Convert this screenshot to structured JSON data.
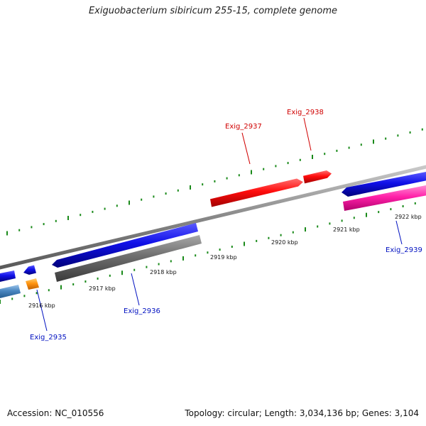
{
  "title": "Exiguobacterium sibiricum 255-15, complete genome",
  "accession": "Accession: NC_010556",
  "topology": "Topology: circular; Length: 3,034,136 bp; Genes: 3,104",
  "colors": {
    "forward_gene": "#1010e8",
    "forward_gene_dark": "#0000a0",
    "highlight_gene": "#ff0c0c",
    "pink_gene": "#ff20a8",
    "gray_gene": "#6e6e6e",
    "steel_gene": "#4a86c0",
    "orange_gene": "#ff9410",
    "backbone": "#888888",
    "tick": "#1a8a1a",
    "red_label": "#d00000",
    "blue_label": "#0010c0"
  },
  "scale_labels": [
    "2916 kbp",
    "2917 kbp",
    "2918 kbp",
    "2919 kbp",
    "2920 kbp",
    "2921 kbp",
    "2922 kbp"
  ],
  "gene_labels": [
    {
      "name": "Exig_2935",
      "color": "blue"
    },
    {
      "name": "Exig_2936",
      "color": "blue"
    },
    {
      "name": "Exig_2937",
      "color": "red"
    },
    {
      "name": "Exig_2938",
      "color": "red"
    },
    {
      "name": "Exig_2939",
      "color": "blue"
    }
  ]
}
